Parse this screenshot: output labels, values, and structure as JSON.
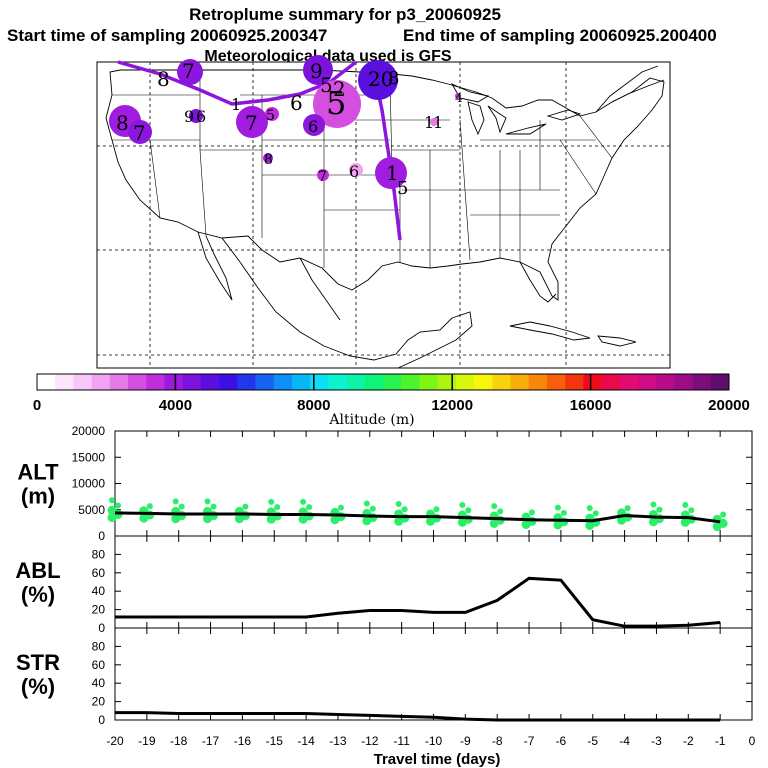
{
  "header": {
    "title": "Retroplume summary for p3_20060925",
    "start_time": "Start time of sampling 20060925.200347",
    "end_time": "End time of sampling 20060925.200400",
    "met_data": "Meteorological data used is GFS"
  },
  "colorbar": {
    "ticks": [
      "0",
      "4000",
      "8000",
      "12000",
      "16000",
      "20000"
    ],
    "label": "Altitude (m)",
    "min": 0,
    "max": 20000,
    "colors": [
      "#ffffff",
      "#fde6fd",
      "#f8c6f8",
      "#f1a2f1",
      "#e57ae8",
      "#d44fe0",
      "#c02ddd",
      "#9d19de",
      "#7d12dd",
      "#5b0fdf",
      "#3b10e6",
      "#2236ec",
      "#1664f2",
      "#0c8ff6",
      "#09b7f8",
      "#0cdff3",
      "#0cf3d2",
      "#0ef3a6",
      "#10f37a",
      "#28f353",
      "#4ff32a",
      "#7ff514",
      "#acf50f",
      "#d6f70e",
      "#f7f50c",
      "#f8d30b",
      "#f8ad0a",
      "#f8870a",
      "#f85f0a",
      "#f4340c",
      "#ee0c1c",
      "#e80a4a",
      "#e10b72",
      "#d10a86",
      "#b80b8a",
      "#9b0c86",
      "#7d0d7c",
      "#600e6e"
    ]
  },
  "map_labels": [
    {
      "text": "8"
    },
    {
      "text": "7"
    },
    {
      "text": "9"
    },
    {
      "text": "5"
    },
    {
      "text": "2"
    },
    {
      "text": "20"
    },
    {
      "text": "8"
    },
    {
      "text": "5"
    },
    {
      "text": "6"
    },
    {
      "text": "7"
    },
    {
      "text": "1"
    },
    {
      "text": "5"
    },
    {
      "text": "4"
    },
    {
      "text": "8"
    },
    {
      "text": "7"
    },
    {
      "text": "9"
    },
    {
      "text": "6"
    },
    {
      "text": "6"
    },
    {
      "text": "1"
    },
    {
      "text": "1"
    },
    {
      "text": "8"
    },
    {
      "text": "7"
    },
    {
      "text": "6"
    },
    {
      "text": "1"
    },
    {
      "text": "5"
    }
  ],
  "chart_data": [
    {
      "type": "line",
      "panel": "ALT",
      "ylabel": "ALT",
      "yunit": "(m)",
      "ylim": [
        0,
        20000
      ],
      "yticks": [
        "0",
        "5000",
        "10000",
        "15000",
        "20000"
      ],
      "x": [
        -20,
        -19,
        -18,
        -17,
        -16,
        -15,
        -14,
        -13,
        -12,
        -11,
        -10,
        -9,
        -8,
        -7,
        -6,
        -5,
        -4,
        -3,
        -2,
        -1
      ],
      "values": [
        4400,
        4300,
        4200,
        4200,
        4200,
        4100,
        4100,
        4000,
        3800,
        3700,
        3700,
        3500,
        3300,
        3100,
        3000,
        2900,
        3900,
        3600,
        3500,
        2700
      ]
    },
    {
      "type": "line",
      "panel": "ABL",
      "ylabel": "ABL",
      "yunit": "(%)",
      "ylim": [
        0,
        100
      ],
      "yticks": [
        "0",
        "20",
        "40",
        "60",
        "80"
      ],
      "x": [
        -20,
        -19,
        -18,
        -17,
        -16,
        -15,
        -14,
        -13,
        -12,
        -11,
        -10,
        -9,
        -8,
        -7,
        -6,
        -5,
        -4,
        -3,
        -2,
        -1
      ],
      "values": [
        12,
        12,
        12,
        12,
        12,
        12,
        12,
        16,
        19,
        19,
        17,
        17,
        30,
        54,
        52,
        9,
        2,
        2,
        3,
        6
      ]
    },
    {
      "type": "line",
      "panel": "STR",
      "ylabel": "STR",
      "yunit": "(%)",
      "ylim": [
        0,
        100
      ],
      "yticks": [
        "0",
        "20",
        "40",
        "60",
        "80"
      ],
      "x": [
        -20,
        -19,
        -18,
        -17,
        -16,
        -15,
        -14,
        -13,
        -12,
        -11,
        -10,
        -9,
        -8,
        -7,
        -6,
        -5,
        -4,
        -3,
        -2,
        -1
      ],
      "values": [
        8,
        8,
        7,
        7,
        7,
        7,
        7,
        6,
        5,
        4,
        3,
        1,
        0,
        0,
        0,
        0,
        0,
        0,
        0,
        0
      ]
    }
  ],
  "xaxis": {
    "ticks": [
      "-20",
      "-19",
      "-18",
      "-17",
      "-16",
      "-15",
      "-14",
      "-13",
      "-12",
      "-11",
      "-10",
      "-9",
      "-8",
      "-7",
      "-6",
      "-5",
      "-4",
      "-3",
      "-2",
      "-1",
      "0"
    ],
    "label": "Travel time (days)"
  }
}
